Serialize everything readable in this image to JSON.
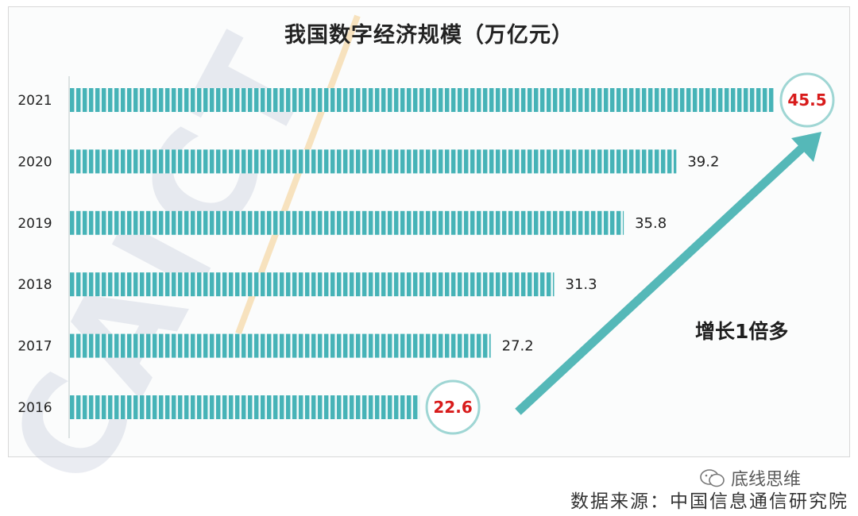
{
  "chart_data": {
    "type": "bar",
    "orientation": "horizontal",
    "title": "我国数字经济规模（万亿元）",
    "categories": [
      "2021",
      "2020",
      "2019",
      "2018",
      "2017",
      "2016"
    ],
    "values": [
      45.5,
      39.2,
      35.8,
      31.3,
      27.2,
      22.6
    ],
    "highlighted": [
      "45.5",
      "22.6"
    ],
    "xlim": [
      0,
      45.5
    ],
    "grid": false,
    "legend": "none",
    "annotation": "增长1倍多",
    "colors": {
      "bar": "#46b3b7",
      "bar_stripe": "#ffffff",
      "arrow": "#55b8b8",
      "highlight_text": "#d81b1b",
      "highlight_ring": "#9fd6d4",
      "label_text": "#222222"
    }
  },
  "watermark": "CAICT",
  "source": "数据来源：中国信息通信研究院",
  "brand": {
    "name": "底线思维",
    "icon": "wechat-icon"
  }
}
